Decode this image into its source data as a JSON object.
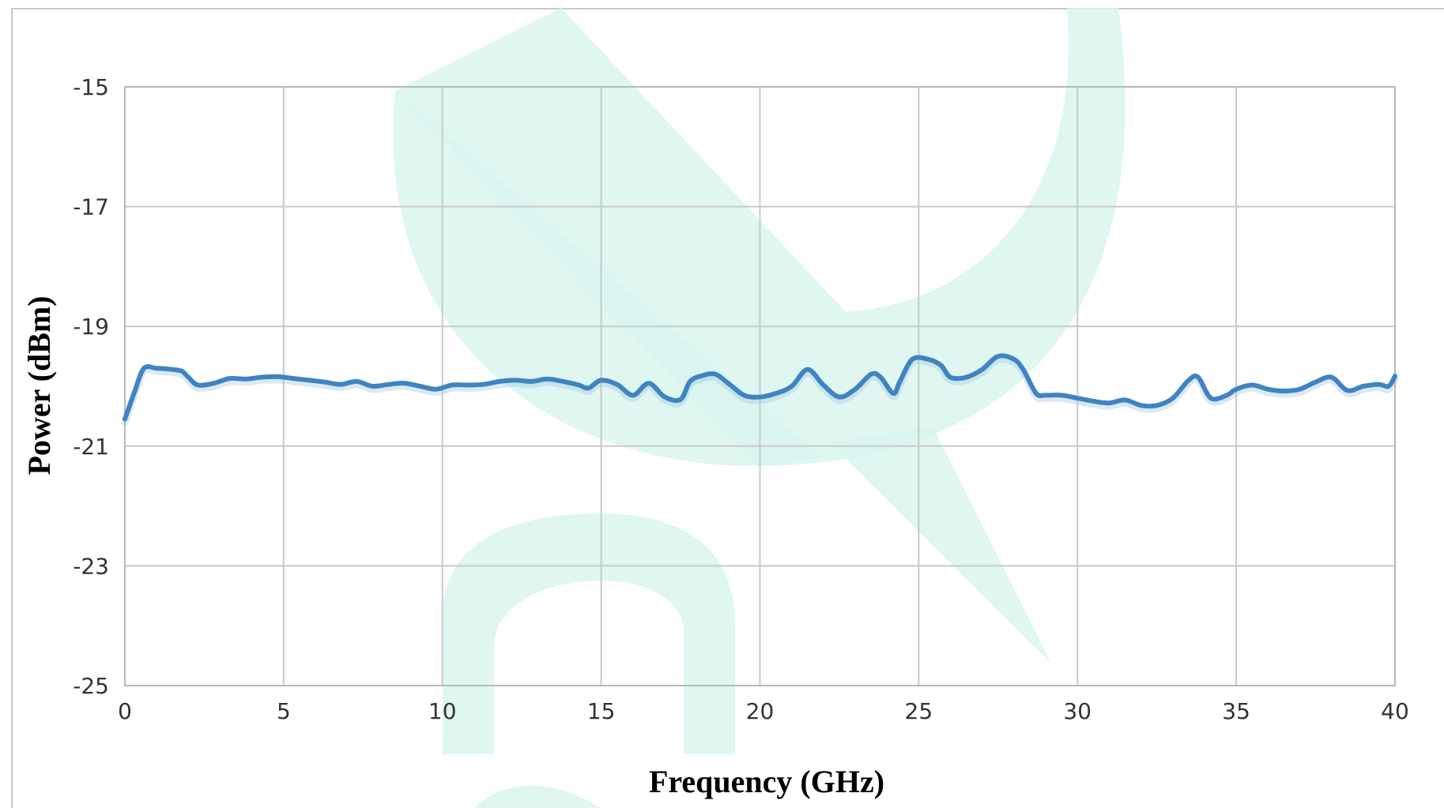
{
  "colors": {
    "series": "#3f84c2",
    "watermark": "#d9f4ef"
  },
  "chart_data": {
    "type": "line",
    "title": "",
    "xlabel": "Frequency (GHz)",
    "ylabel": "Power (dBm)",
    "xlim": [
      0,
      40
    ],
    "ylim": [
      -25,
      -15
    ],
    "xticks": [
      0,
      5,
      10,
      15,
      20,
      25,
      30,
      35,
      40
    ],
    "yticks": [
      -15,
      -17,
      -19,
      -21,
      -23,
      -25
    ],
    "grid": true,
    "legend": "none",
    "series": [
      {
        "x": [
          0,
          0.3,
          0.6,
          1.0,
          1.5,
          1.8,
          2.0,
          2.3,
          2.8,
          3.3,
          3.8,
          4.3,
          4.8,
          5.3,
          5.8,
          6.3,
          6.8,
          7.3,
          7.8,
          8.3,
          8.8,
          9.3,
          9.8,
          10.3,
          10.8,
          11.3,
          11.8,
          12.3,
          12.8,
          13.3,
          13.8,
          14.3,
          14.6,
          15.0,
          15.5,
          16.0,
          16.5,
          17.0,
          17.5,
          17.8,
          18.2,
          18.6,
          19.0,
          19.5,
          20.0,
          20.5,
          21.0,
          21.5,
          22.0,
          22.5,
          23.0,
          23.5,
          23.8,
          24.2,
          24.4,
          24.8,
          25.3,
          25.7,
          26.0,
          26.5,
          27.0,
          27.5,
          28.0,
          28.3,
          28.7,
          29.0,
          29.5,
          30.0,
          30.5,
          31.0,
          31.5,
          32.0,
          32.5,
          33.0,
          33.5,
          33.8,
          34.2,
          34.7,
          35.0,
          35.5,
          36.0,
          36.5,
          37.0,
          37.5,
          38.0,
          38.5,
          39.0,
          39.5,
          39.8,
          40.0
        ],
        "y": [
          -20.55,
          -20.1,
          -19.7,
          -19.7,
          -19.72,
          -19.75,
          -19.85,
          -19.98,
          -19.95,
          -19.87,
          -19.88,
          -19.85,
          -19.84,
          -19.87,
          -19.9,
          -19.93,
          -19.97,
          -19.92,
          -20.0,
          -19.97,
          -19.95,
          -20.0,
          -20.05,
          -19.98,
          -19.98,
          -19.97,
          -19.92,
          -19.9,
          -19.92,
          -19.88,
          -19.92,
          -19.98,
          -20.03,
          -19.9,
          -19.97,
          -20.15,
          -19.95,
          -20.18,
          -20.22,
          -19.92,
          -19.82,
          -19.8,
          -19.95,
          -20.15,
          -20.18,
          -20.12,
          -20.0,
          -19.72,
          -19.98,
          -20.18,
          -20.05,
          -19.8,
          -19.85,
          -20.12,
          -19.93,
          -19.55,
          -19.55,
          -19.65,
          -19.85,
          -19.85,
          -19.72,
          -19.5,
          -19.55,
          -19.73,
          -20.12,
          -20.15,
          -20.15,
          -20.2,
          -20.25,
          -20.28,
          -20.23,
          -20.32,
          -20.32,
          -20.2,
          -19.9,
          -19.85,
          -20.2,
          -20.15,
          -20.05,
          -19.98,
          -20.05,
          -20.08,
          -20.05,
          -19.93,
          -19.85,
          -20.07,
          -20.0,
          -19.97,
          -20.0,
          -19.83
        ]
      }
    ]
  }
}
